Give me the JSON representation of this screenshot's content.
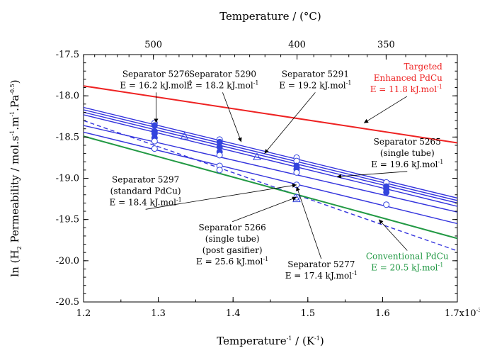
{
  "chart_data": {
    "type": "line",
    "xlabel": "Temperature",
    "xlabel_sup": "-1",
    "xlabel_unit": " / (K",
    "xlabel_unit_sup": "-1",
    "xlabel_close": ")",
    "x_multiplier_label": "1.7x10",
    "x_multiplier_sup": "-3",
    "top_xlabel": "Temperature / (°C)",
    "ylabel_parts": [
      "ln (H",
      "2",
      " Permeability / mol.s",
      "-1",
      ".m",
      "-1",
      ".Pa",
      "-0.5",
      ")"
    ],
    "xlim": [
      0.0012,
      0.0017
    ],
    "ylim": [
      -20.5,
      -17.5
    ],
    "x_tick_labels": [
      {
        "value": 0.0012,
        "label": "1.2"
      },
      {
        "value": 0.0013,
        "label": "1.3"
      },
      {
        "value": 0.0014,
        "label": "1.4"
      },
      {
        "value": 0.0015,
        "label": "1.5"
      },
      {
        "value": 0.0016,
        "label": "1.6"
      }
    ],
    "y_ticks": [
      -20.5,
      -20.0,
      -19.5,
      -19.0,
      -18.5,
      -18.0,
      -17.5
    ],
    "y_tick_labels": [
      "-20.5",
      "-20.0",
      "-19.5",
      "-19.0",
      "-18.5",
      "-18.0",
      "-17.5"
    ],
    "top_ticks_celsius": [
      {
        "value": 500,
        "label": "500"
      },
      {
        "value": 400,
        "label": "400"
      },
      {
        "value": 350,
        "label": "350"
      }
    ],
    "series": [
      {
        "id": "targeted",
        "color": "#ee2222",
        "dashed": false,
        "x": [
          0.0012,
          0.0017
        ],
        "y": [
          -17.88,
          -18.57
        ]
      },
      {
        "id": "s5276",
        "color": "#3333dd",
        "dashed": false,
        "x": [
          0.0012,
          0.0017
        ],
        "y": [
          -18.14,
          -19.24
        ]
      },
      {
        "id": "s5290",
        "color": "#3333dd",
        "dashed": false,
        "x": [
          0.0012,
          0.0017
        ],
        "y": [
          -18.17,
          -19.27
        ]
      },
      {
        "id": "s5291",
        "color": "#3333dd",
        "dashed": false,
        "x": [
          0.0012,
          0.0017
        ],
        "y": [
          -18.2,
          -19.3
        ]
      },
      {
        "id": "s5265",
        "color": "#3333dd",
        "dashed": false,
        "x": [
          0.0012,
          0.0017
        ],
        "y": [
          -18.23,
          -19.34
        ]
      },
      {
        "id": "s5297",
        "color": "#3333dd",
        "dashed": false,
        "x": [
          0.0012,
          0.0017
        ],
        "y": [
          -18.36,
          -19.41
        ]
      },
      {
        "id": "s5277",
        "color": "#3333dd",
        "dashed": false,
        "x": [
          0.0012,
          0.0017
        ],
        "y": [
          -18.44,
          -19.55
        ]
      },
      {
        "id": "s5266",
        "color": "#3333dd",
        "dashed": true,
        "x": [
          0.0012,
          0.0017
        ],
        "y": [
          -18.3,
          -19.88
        ]
      },
      {
        "id": "conventional",
        "color": "#229944",
        "dashed": false,
        "x": [
          0.0012,
          0.0017
        ],
        "y": [
          -18.49,
          -19.73
        ]
      }
    ],
    "points": [
      {
        "x": 0.001295,
        "y": -18.33,
        "marker": "circle"
      },
      {
        "x": 0.001295,
        "y": -18.36,
        "marker": "filled"
      },
      {
        "x": 0.001295,
        "y": -18.43,
        "marker": "filled"
      },
      {
        "x": 0.001295,
        "y": -18.46,
        "marker": "filled"
      },
      {
        "x": 0.001295,
        "y": -18.51,
        "marker": "filled"
      },
      {
        "x": 0.001295,
        "y": -18.55,
        "marker": "circle"
      },
      {
        "x": 0.001295,
        "y": -18.64,
        "marker": "circle"
      },
      {
        "x": 0.001335,
        "y": -18.49,
        "marker": "triangle"
      },
      {
        "x": 0.001382,
        "y": -18.53,
        "marker": "circle"
      },
      {
        "x": 0.001382,
        "y": -18.56,
        "marker": "filled"
      },
      {
        "x": 0.001382,
        "y": -18.62,
        "marker": "filled"
      },
      {
        "x": 0.001382,
        "y": -18.68,
        "marker": "filled"
      },
      {
        "x": 0.001382,
        "y": -18.72,
        "marker": "circle"
      },
      {
        "x": 0.001382,
        "y": -18.85,
        "marker": "circle"
      },
      {
        "x": 0.001382,
        "y": -18.9,
        "marker": "circle"
      },
      {
        "x": 0.001432,
        "y": -18.74,
        "marker": "triangle"
      },
      {
        "x": 0.001485,
        "y": -18.75,
        "marker": "circle"
      },
      {
        "x": 0.001485,
        "y": -18.79,
        "marker": "circle"
      },
      {
        "x": 0.001485,
        "y": -18.85,
        "marker": "filled"
      },
      {
        "x": 0.001485,
        "y": -18.89,
        "marker": "filled"
      },
      {
        "x": 0.001485,
        "y": -18.93,
        "marker": "circle"
      },
      {
        "x": 0.001485,
        "y": -19.08,
        "marker": "circle"
      },
      {
        "x": 0.001485,
        "y": -19.23,
        "marker": "circle"
      },
      {
        "x": 0.001485,
        "y": -19.25,
        "marker": "triangle"
      },
      {
        "x": 0.001605,
        "y": -19.05,
        "marker": "circle"
      },
      {
        "x": 0.001605,
        "y": -19.1,
        "marker": "filled"
      },
      {
        "x": 0.001605,
        "y": -19.13,
        "marker": "filled"
      },
      {
        "x": 0.001605,
        "y": -19.17,
        "marker": "filled"
      },
      {
        "x": 0.001605,
        "y": -19.32,
        "marker": "circle"
      }
    ],
    "annotations": [
      {
        "id": "s5276",
        "lines": [
          "Separator 5276",
          "E = 16.2 kJ.mol"
        ],
        "sup": "-1",
        "color": "#000000",
        "anchor": "middle",
        "tx": 0.001297,
        "ty": -17.77,
        "target": [
          0.001297,
          -18.33
        ]
      },
      {
        "id": "s5290",
        "lines": [
          "Separator 5290",
          "E = 18.2 kJ.mol"
        ],
        "sup": "-1",
        "color": "#000000",
        "anchor": "middle",
        "tx": 0.001386,
        "ty": -17.77,
        "target": [
          0.001411,
          -18.56
        ]
      },
      {
        "id": "s5291",
        "lines": [
          "Separator 5291",
          "E = 19.2 kJ.mol"
        ],
        "sup": "-1",
        "color": "#000000",
        "anchor": "middle",
        "tx": 0.00151,
        "ty": -17.77,
        "target": [
          0.001442,
          -18.7
        ]
      },
      {
        "id": "targeted",
        "lines": [
          "Targeted",
          "Enhanced PdCu",
          "E = 11.8 kJ.mol"
        ],
        "sup": "-1",
        "color": "#ee2222",
        "anchor": "end",
        "tx": 0.00168,
        "ty": -17.68,
        "target": [
          0.001575,
          -18.33
        ]
      },
      {
        "id": "s5265",
        "lines": [
          "Separator 5265",
          "(single tube)",
          "E = 19.6 kJ.mol"
        ],
        "sup": "-1",
        "color": "#000000",
        "anchor": "middle",
        "tx": 0.001633,
        "ty": -18.59,
        "target": [
          0.001539,
          -18.98
        ]
      },
      {
        "id": "s5297",
        "lines": [
          "Separator 5297",
          "(standard PdCu)",
          "E = 18.4 kJ.mol"
        ],
        "sup": "-1",
        "color": "#000000",
        "anchor": "middle",
        "tx": 0.001283,
        "ty": -19.05,
        "target": [
          0.001485,
          -19.08
        ]
      },
      {
        "id": "s5266",
        "lines": [
          "Separator 5266",
          "(single tube)",
          "(post gasifier)",
          "E = 25.6 kJ.mol"
        ],
        "sup": "-1",
        "color": "#000000",
        "anchor": "middle",
        "tx": 0.001399,
        "ty": -19.63,
        "target": [
          0.001485,
          -19.23
        ]
      },
      {
        "id": "s5277",
        "lines": [
          "Separator 5277",
          "E = 17.4 kJ.mol"
        ],
        "sup": "-1",
        "color": "#000000",
        "anchor": "middle",
        "tx": 0.001518,
        "ty": -20.08,
        "target": [
          0.001485,
          -19.1
        ]
      },
      {
        "id": "conventional",
        "lines": [
          "Conventional PdCu",
          "E = 20.5 kJ.mol"
        ],
        "sup": "-1",
        "color": "#229944",
        "anchor": "middle",
        "tx": 0.001633,
        "ty": -19.98,
        "target": [
          0.001595,
          -19.5
        ]
      }
    ]
  }
}
